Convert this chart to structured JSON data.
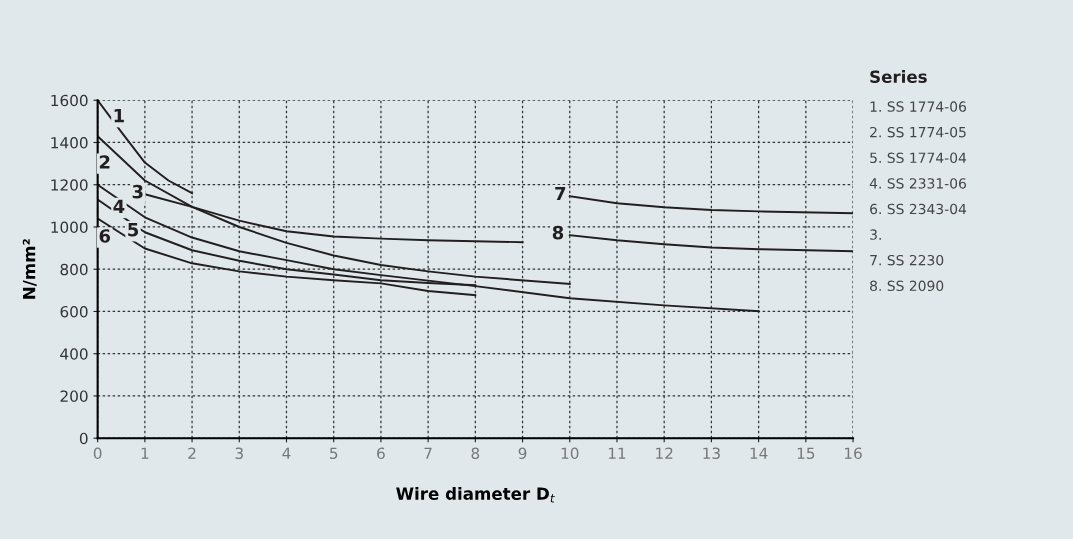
{
  "chart_data": {
    "type": "line",
    "xlabel": "Wire diameter D$_{t}$",
    "ylabel": "N/mm²",
    "legend_title": "Series",
    "xlim": [
      0,
      16
    ],
    "xticks": [
      0,
      1,
      2,
      3,
      4,
      5,
      6,
      7,
      8,
      9,
      10,
      11,
      12,
      13,
      14,
      15,
      16
    ],
    "ylim": [
      0,
      1600
    ],
    "yticks": [
      0,
      200,
      400,
      600,
      800,
      1000,
      1200,
      1400,
      1600
    ],
    "grid": true,
    "marker": "none",
    "line_style": "solid",
    "series": [
      {
        "name": "1",
        "color": "#231f20",
        "x": [
          0,
          0.5,
          1,
          1.5,
          2
        ],
        "values": [
          1600,
          1450,
          1305,
          1220,
          1160
        ]
      },
      {
        "name": "2",
        "color": "#231f20",
        "x": [
          0,
          1,
          2,
          3,
          4,
          5,
          6,
          7,
          8,
          10
        ],
        "values": [
          1430,
          1220,
          1095,
          1000,
          925,
          865,
          820,
          790,
          765,
          730
        ]
      },
      {
        "name": "5",
        "color": "#231f20",
        "x": [
          0,
          1,
          2,
          3,
          4,
          5,
          6,
          7,
          8
        ],
        "values": [
          1130,
          975,
          890,
          840,
          800,
          775,
          748,
          735,
          724
        ]
      },
      {
        "name": "4",
        "color": "#231f20",
        "x": [
          0,
          1,
          2,
          3,
          4,
          5,
          6,
          8,
          10,
          12,
          14
        ],
        "values": [
          1200,
          1046,
          950,
          885,
          843,
          800,
          772,
          720,
          663,
          629,
          601
        ]
      },
      {
        "name": "6",
        "color": "#231f20",
        "x": [
          0,
          1,
          2,
          3,
          4,
          5,
          6,
          7,
          8
        ],
        "values": [
          1040,
          898,
          828,
          790,
          765,
          748,
          733,
          697,
          677
        ]
      },
      {
        "name": "3",
        "color": "#231f20",
        "x": [
          1,
          2,
          3,
          4,
          5,
          6,
          7,
          9
        ],
        "values": [
          1155,
          1095,
          1030,
          980,
          955,
          945,
          937,
          928
        ]
      },
      {
        "name": "7",
        "color": "#231f20",
        "x": [
          10,
          11,
          12,
          13,
          14,
          16
        ],
        "values": [
          1146,
          1112,
          1093,
          1080,
          1074,
          1065
        ]
      },
      {
        "name": "8",
        "color": "#231f20",
        "x": [
          10,
          11,
          12,
          13,
          14,
          16
        ],
        "values": [
          961,
          937,
          918,
          903,
          895,
          885
        ]
      }
    ],
    "annotations": [
      "1. SS 1774-06",
      "2. SS 1774-05",
      "5. SS 1774-04",
      "4. SS 2331-06",
      "6. SS 2343-04",
      "3.",
      "7. SS 2230",
      "8. SS 2090"
    ]
  }
}
